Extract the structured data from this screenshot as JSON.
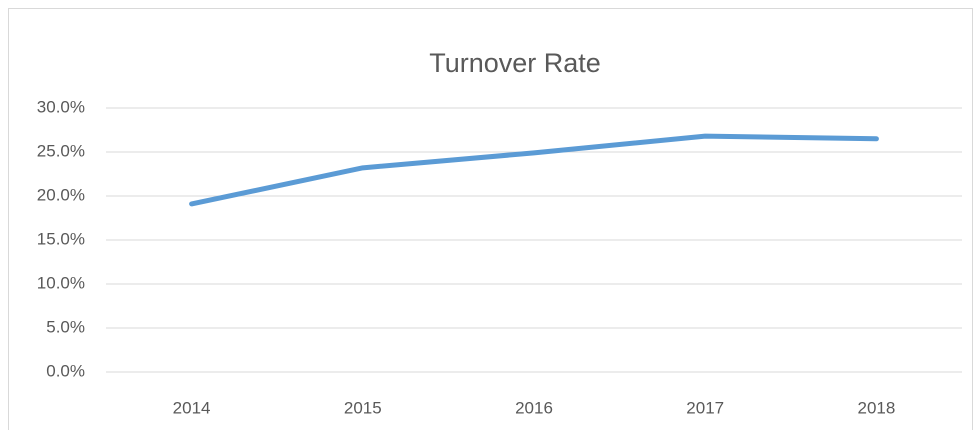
{
  "chart_data": {
    "type": "line",
    "title": "Turnover Rate",
    "categories": [
      "2014",
      "2015",
      "2016",
      "2017",
      "2018"
    ],
    "series": [
      {
        "name": "Turnover Rate",
        "color": "#5b9bd5",
        "values": [
          19.1,
          23.2,
          24.9,
          26.8,
          26.5
        ]
      }
    ],
    "ylim": [
      0,
      30
    ],
    "yticks": [
      {
        "value": 0,
        "label": "0.0%"
      },
      {
        "value": 5,
        "label": "5.0%"
      },
      {
        "value": 10,
        "label": "10.0%"
      },
      {
        "value": 15,
        "label": "15.0%"
      },
      {
        "value": 20,
        "label": "20.0%"
      },
      {
        "value": 25,
        "label": "25.0%"
      },
      {
        "value": 30,
        "label": "30.0%"
      }
    ],
    "grid": true
  }
}
